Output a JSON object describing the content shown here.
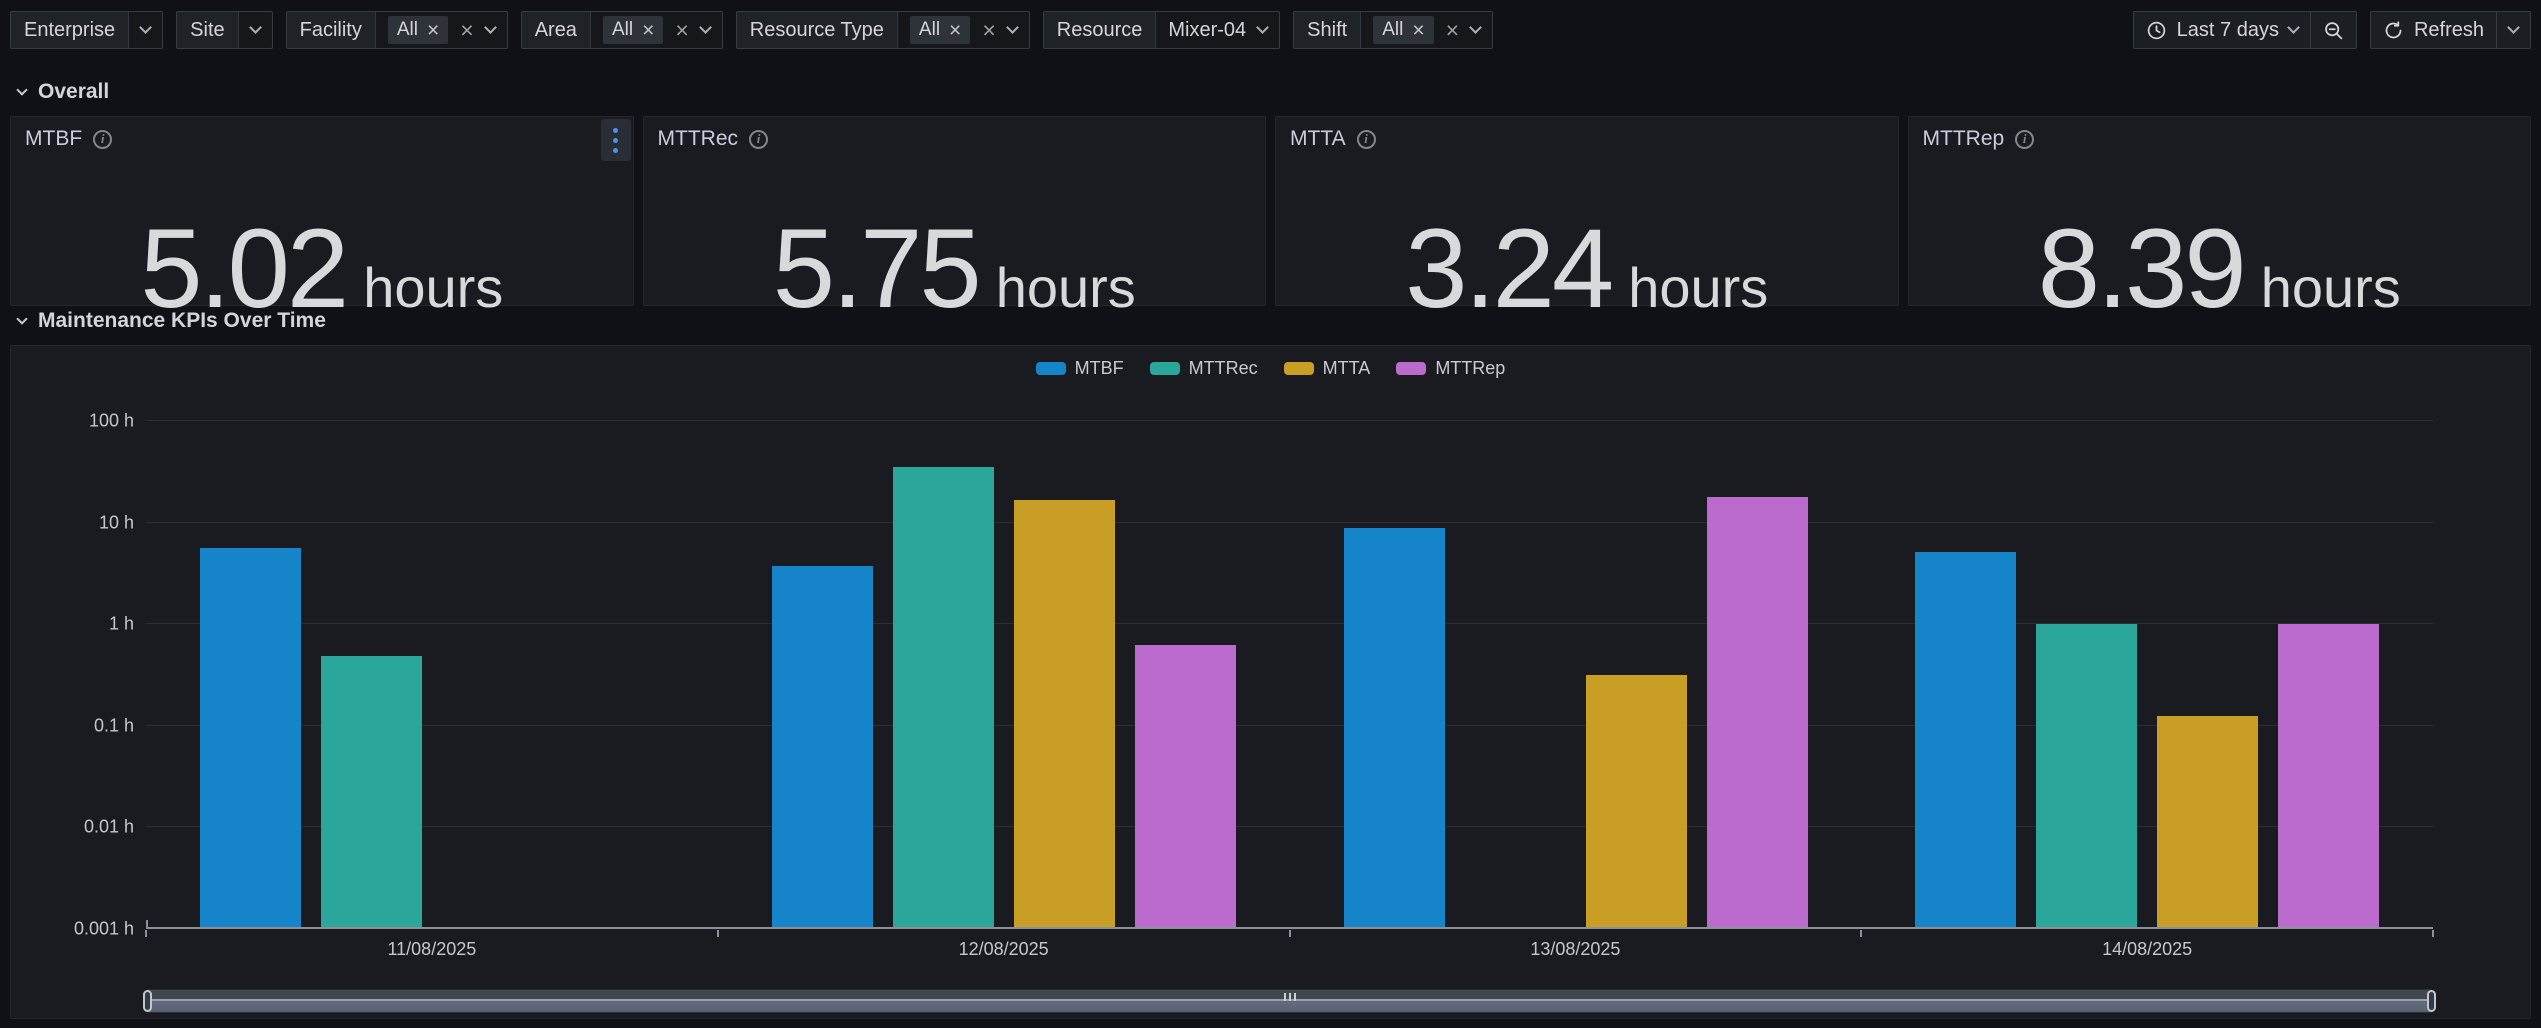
{
  "icons": {
    "clear": "×",
    "info": "i"
  },
  "toolbar": {
    "filters": [
      {
        "label": "Enterprise"
      },
      {
        "label": "Site"
      },
      {
        "label": "Facility",
        "selected": "All"
      },
      {
        "label": "Area",
        "selected": "All"
      },
      {
        "label": "Resource Type",
        "selected": "All"
      },
      {
        "label": "Resource",
        "value": "Mixer-04"
      },
      {
        "label": "Shift",
        "selected": "All"
      }
    ],
    "time_range": "Last 7 days",
    "refresh_label": "Refresh"
  },
  "sections": {
    "overall": "Overall",
    "kpis": "Maintenance KPIs Over Time"
  },
  "stats": [
    {
      "title": "MTBF",
      "value": "5.02",
      "unit": "hours"
    },
    {
      "title": "MTTRec",
      "value": "5.75",
      "unit": "hours"
    },
    {
      "title": "MTTA",
      "value": "3.24",
      "unit": "hours"
    },
    {
      "title": "MTTRep",
      "value": "8.39",
      "unit": "hours"
    }
  ],
  "chart_data": {
    "type": "bar",
    "title": "",
    "categories": [
      "11/08/2025",
      "12/08/2025",
      "13/08/2025",
      "14/08/2025"
    ],
    "series": [
      {
        "name": "MTBF",
        "color": "#1584C9",
        "values": [
          5.4,
          3.6,
          8.5,
          4.9
        ]
      },
      {
        "name": "MTTRec",
        "color": "#2BA69B",
        "values": [
          0.47,
          34,
          null,
          0.97
        ]
      },
      {
        "name": "MTTA",
        "color": "#C99E25",
        "values": [
          null,
          16,
          0.3,
          0.12
        ]
      },
      {
        "name": "MTTRep",
        "color": "#BB6BCE",
        "values": [
          null,
          0.6,
          17,
          0.96
        ]
      }
    ],
    "y_axis": {
      "scale": "log",
      "unit": "h",
      "ticks": [
        100,
        10,
        1,
        0.1,
        0.01,
        0.001
      ],
      "tick_labels": [
        "100 h",
        "10 h",
        "1 h",
        "0.1 h",
        "0.01 h",
        "0.001 h"
      ],
      "range_decades": 5.2
    },
    "xlabel": "",
    "ylabel": "hours",
    "grid": true,
    "legend_position": "top"
  }
}
